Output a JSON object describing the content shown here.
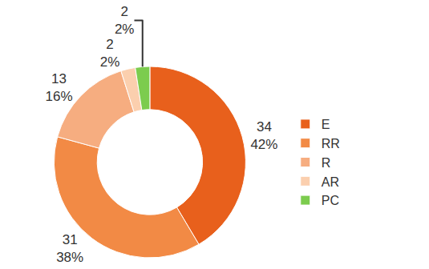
{
  "chart_data": {
    "type": "pie",
    "categories": [
      "E",
      "RR",
      "R",
      "AR",
      "PC"
    ],
    "values": [
      34,
      31,
      13,
      2,
      2
    ],
    "percent_labels": [
      "42%",
      "38%",
      "16%",
      "2%",
      "2%"
    ],
    "colors": [
      "#e8601c",
      "#f28a45",
      "#f6ad80",
      "#fbcfae",
      "#7ccc4e"
    ],
    "data_labels": true,
    "legend": "right"
  }
}
